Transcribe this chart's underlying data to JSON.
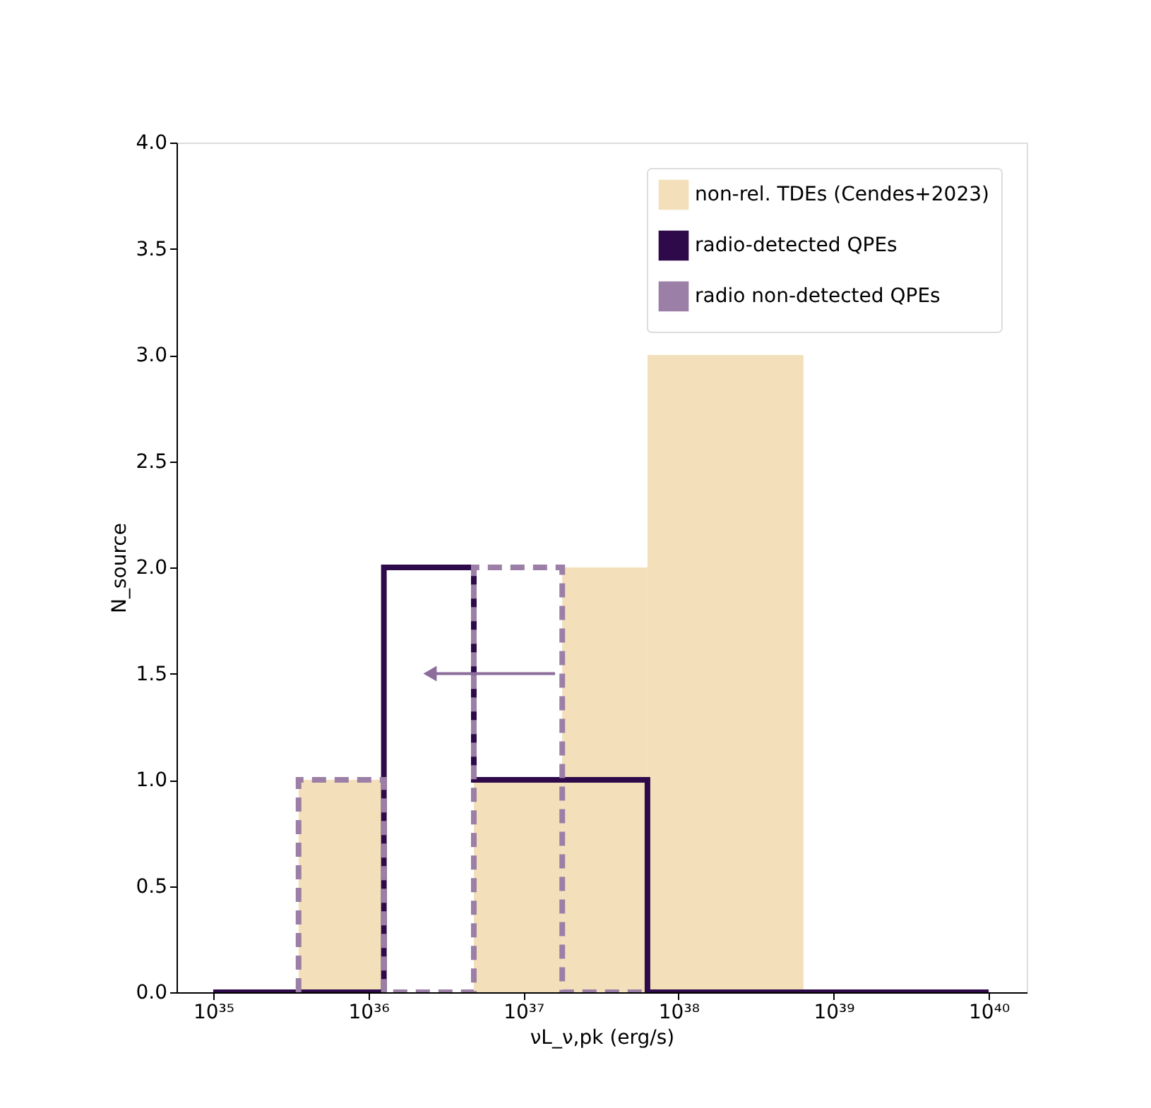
{
  "chart_data": {
    "type": "histogram",
    "xlabel": "νL_ν,pk (erg/s)",
    "ylabel": "N_source",
    "series": [
      {
        "name": "non-rel. TDEs (Cendes+2023)",
        "color": "#f3e0ba",
        "bins": [
          3.55e+35,
          1.26e+36,
          4.79e+36,
          1.78e+37,
          6.31e+37,
          6.4e+38
        ],
        "values": [
          1,
          0,
          1,
          2,
          3
        ]
      },
      {
        "name": "radio-detected QPEs",
        "type": "step",
        "color": "#2e0a4a",
        "line_style": "solid",
        "x": [
          1e+35,
          1.26e+36,
          4.79e+36,
          6.31e+37,
          1e+40
        ],
        "values": [
          0,
          2,
          1,
          0,
          0
        ]
      },
      {
        "name": "radio non-detected QPEs",
        "type": "step",
        "color": "#9b7fa6",
        "line_style": "dashed",
        "x": [
          3.55e+35,
          3.55e+35,
          1.26e+36,
          4.79e+36,
          1.78e+37,
          6.31e+37
        ],
        "values": [
          0,
          1,
          0,
          2,
          0,
          0
        ]
      },
      {
        "type": "line",
        "color": "#8c6d9c",
        "marker": "triangle",
        "x": [
          1.6e+37,
          2.5e+36
        ],
        "values": [
          1.5,
          1.5
        ]
      }
    ],
    "log": "x",
    "xlim": [
      5.8e+34,
      1.76e+40
    ],
    "xticks": [
      {
        "value": 1e+35,
        "label": "10³⁵"
      },
      {
        "value": 1e+36,
        "label": "10³⁶"
      },
      {
        "value": 1e+37,
        "label": "10³⁷"
      },
      {
        "value": 1e+38,
        "label": "10³⁸"
      },
      {
        "value": 1e+39,
        "label": "10³⁹"
      },
      {
        "value": 1e+40,
        "label": "10⁴⁰"
      }
    ],
    "ylim": [
      0,
      4
    ],
    "yticks": [
      {
        "value": 0,
        "label": "0.0"
      },
      {
        "value": 0.5,
        "label": "0.5"
      },
      {
        "value": 1,
        "label": "1.0"
      },
      {
        "value": 1.5,
        "label": "1.5"
      },
      {
        "value": 2,
        "label": "2.0"
      },
      {
        "value": 2.5,
        "label": "2.5"
      },
      {
        "value": 3,
        "label": "3.0"
      },
      {
        "value": 3.5,
        "label": "3.5"
      },
      {
        "value": 4,
        "label": "4.0"
      }
    ],
    "legend": "top right",
    "grid": false
  }
}
